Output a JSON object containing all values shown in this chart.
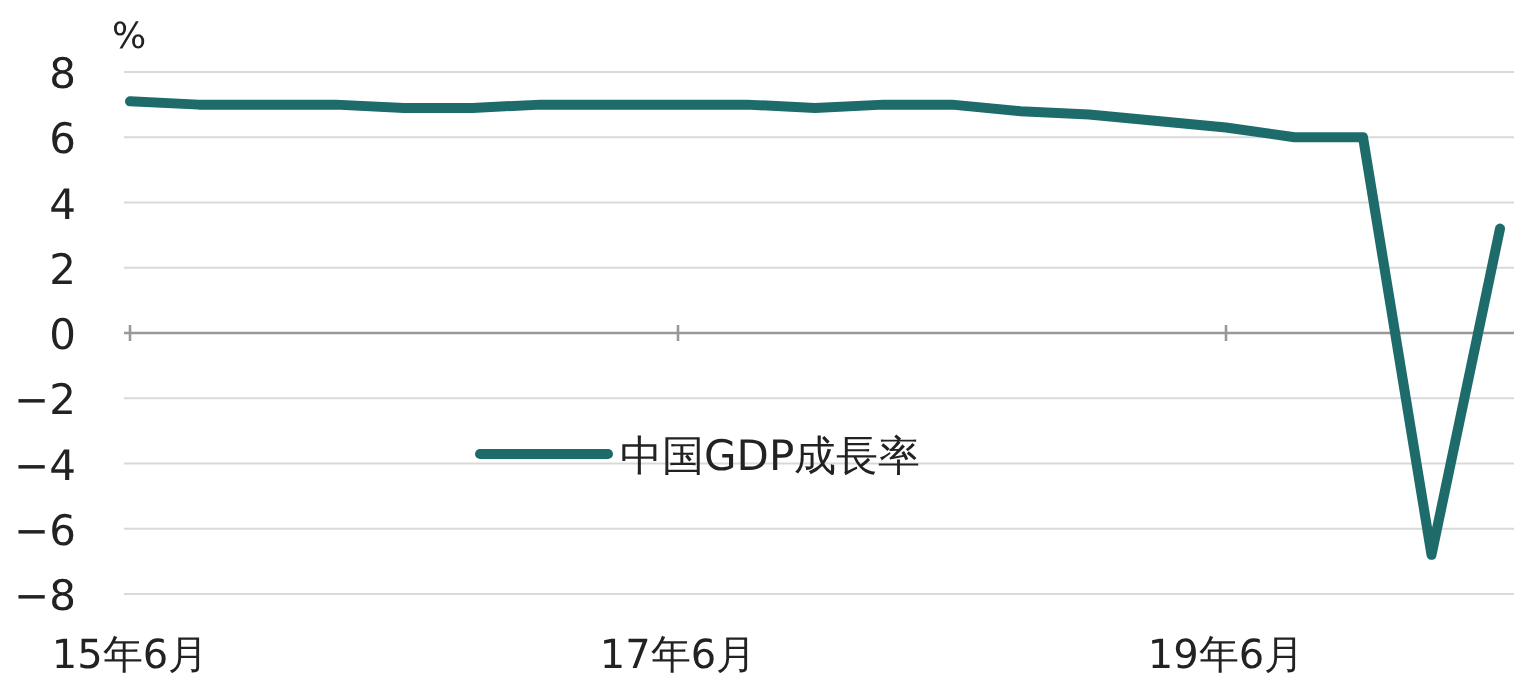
{
  "chart_data": {
    "type": "line",
    "ylabel": "%",
    "categories": [
      "15年6月",
      null,
      null,
      null,
      null,
      null,
      null,
      null,
      "17年6月",
      null,
      null,
      null,
      null,
      null,
      null,
      null,
      "19年6月",
      null,
      null,
      null,
      null
    ],
    "series": [
      {
        "name": "中国GDP成長率",
        "color": "#1d6b6b",
        "values": [
          7.1,
          7.0,
          7.0,
          7.0,
          6.9,
          6.9,
          7.0,
          7.0,
          7.0,
          7.0,
          6.9,
          7.0,
          7.0,
          6.8,
          6.7,
          6.5,
          6.3,
          6.0,
          6.0,
          -6.8,
          3.2
        ]
      }
    ],
    "ylim": [
      -8,
      8
    ],
    "yticks": [
      -8,
      -6,
      -4,
      -2,
      0,
      2,
      4,
      6,
      8
    ],
    "grid": "y",
    "legend": "bottom"
  }
}
